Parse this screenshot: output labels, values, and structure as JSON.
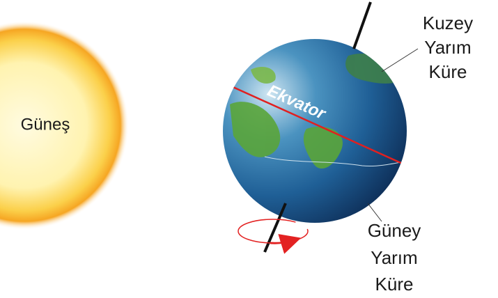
{
  "sun": {
    "label": "Güneş"
  },
  "earth": {
    "equator_label": "Ekvator"
  },
  "north_label": [
    "Kuzey",
    "Yarım",
    "Küre"
  ],
  "south_label": [
    "Güney",
    "Yarım",
    "Küre"
  ]
}
